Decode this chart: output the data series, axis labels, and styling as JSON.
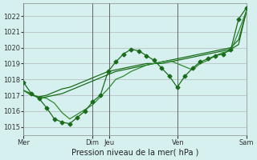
{
  "bg_color": "#d6f0f0",
  "grid_color": "#aaaaaa",
  "line_color": "#1a6b1a",
  "line_color2": "#2d8b2d",
  "title": "Pression niveau de la mer( hPa )",
  "ylim": [
    1014.5,
    1022.8
  ],
  "yticks": [
    1015,
    1016,
    1017,
    1018,
    1019,
    1020,
    1021,
    1022
  ],
  "day_labels": [
    "Mer",
    "Dim",
    "Jeu",
    "Ven",
    "Sam"
  ],
  "day_positions": [
    0,
    48,
    60,
    108,
    156
  ],
  "series1": [
    1017.3,
    1017.0,
    1016.9,
    1016.8,
    1016.5,
    1015.9,
    1015.5,
    1015.8,
    1016.1,
    1016.4,
    1016.9,
    1017.4,
    1018.0,
    1018.2,
    1018.5,
    1018.7,
    1018.9,
    1019.0,
    1019.1,
    1019.2,
    1019.0,
    1018.8,
    1018.6,
    1019.0,
    1019.2,
    1019.5,
    1019.7,
    1019.8,
    1021.0,
    1022.3
  ],
  "series2": [
    1017.8,
    1017.1,
    1016.8,
    1016.2,
    1015.5,
    1015.3,
    1015.2,
    1015.6,
    1016.0,
    1016.6,
    1017.0,
    1018.5,
    1019.1,
    1019.6,
    1019.9,
    1019.8,
    1019.5,
    1019.2,
    1018.7,
    1018.2,
    1017.5,
    1018.2,
    1018.7,
    1019.1,
    1019.3,
    1019.5,
    1019.6,
    1019.9,
    1021.8,
    1022.5
  ],
  "series3": [
    1017.3,
    1017.0,
    1016.9,
    1017.0,
    1017.2,
    1017.4,
    1017.5,
    1017.7,
    1017.9,
    1018.1,
    1018.3,
    1018.5,
    1018.6,
    1018.7,
    1018.8,
    1018.9,
    1019.0,
    1019.0,
    1019.1,
    1019.2,
    1019.3,
    1019.4,
    1019.5,
    1019.6,
    1019.7,
    1019.8,
    1019.9,
    1020.0,
    1020.5,
    1022.2
  ],
  "series4": [
    1017.3,
    1017.1,
    1016.8,
    1016.9,
    1017.0,
    1017.1,
    1017.3,
    1017.5,
    1017.7,
    1017.9,
    1018.1,
    1018.3,
    1018.5,
    1018.6,
    1018.7,
    1018.8,
    1018.9,
    1019.0,
    1019.0,
    1019.1,
    1019.2,
    1019.3,
    1019.4,
    1019.5,
    1019.6,
    1019.7,
    1019.8,
    1019.9,
    1020.2,
    1022.3
  ]
}
